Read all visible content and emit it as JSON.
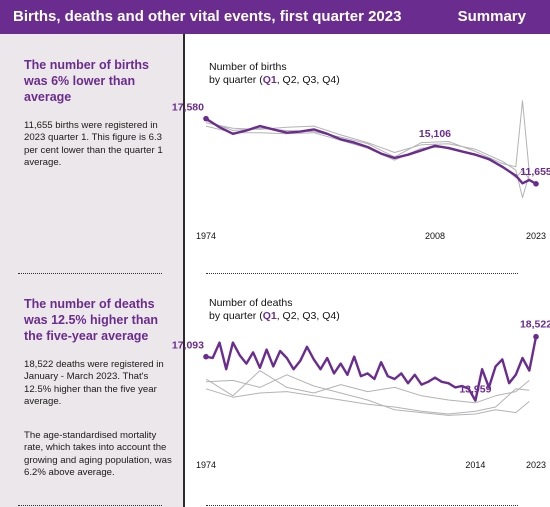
{
  "header": {
    "title": "Births, deaths and other vital events, first quarter 2023",
    "section": "Summary",
    "bg": "#6a2c8e"
  },
  "births_panel": {
    "headline": "The number of births was 6% lower than average",
    "body": "11,655 births were registered in 2023 quarter 1. This figure is 6.3 per cent lower than the quarter 1 average."
  },
  "deaths_panel": {
    "headline": "The number of deaths was 12.5% higher than the five-year average",
    "body": [
      "18,522 deaths were registered in January - March 2023. That's 12.5% higher than the five year average.",
      "The age-standardised mortality rate, which takes into account the growing and aging population, was 6.2% above average."
    ]
  },
  "colors": {
    "highlight": "#6a2c8e",
    "other": "#b3b3b3"
  },
  "chart_data": [
    {
      "type": "line",
      "title_line1": "Number of births",
      "title_line2_prefix": "by quarter (",
      "title_line2_bold": "Q1",
      "title_line2_rest": ", Q2, Q3, Q4)",
      "x_ticks": [
        "1974",
        "2008",
        "2023"
      ],
      "x_range": [
        1974,
        2023
      ],
      "y_range": [
        10000,
        20000
      ],
      "series": [
        {
          "name": "Q1",
          "highlight": true,
          "x": [
            1974,
            1976,
            1978,
            1980,
            1982,
            1984,
            1986,
            1988,
            1990,
            1992,
            1994,
            1996,
            1998,
            2000,
            2002,
            2004,
            2006,
            2008,
            2010,
            2012,
            2014,
            2016,
            2018,
            2020,
            2021,
            2022,
            2023
          ],
          "y": [
            17580,
            16800,
            16200,
            16500,
            16900,
            16600,
            16300,
            16400,
            16600,
            16200,
            15700,
            15400,
            15000,
            14400,
            14000,
            14300,
            14700,
            15106,
            14900,
            14600,
            14300,
            13900,
            13200,
            12400,
            11700,
            12000,
            11655
          ]
        },
        {
          "x": [
            1974,
            1978,
            1982,
            1986,
            1990,
            1994,
            1998,
            2002,
            2006,
            2010,
            2014,
            2018,
            2020,
            2021,
            2022
          ],
          "y": [
            17200,
            16700,
            16600,
            16800,
            16900,
            16100,
            15400,
            14500,
            15200,
            15300,
            14800,
            13700,
            12900,
            10400,
            12500
          ]
        },
        {
          "x": [
            1974,
            1978,
            1982,
            1986,
            1990,
            1994,
            1998,
            2002,
            2006,
            2010,
            2014,
            2018,
            2020,
            2021,
            2022
          ],
          "y": [
            17400,
            16500,
            16700,
            16500,
            16400,
            15900,
            15300,
            14100,
            15400,
            15500,
            14600,
            13500,
            13200,
            19200,
            12700
          ]
        },
        {
          "x": [
            1974,
            1978,
            1982,
            1986,
            1990,
            1994,
            1998,
            2002,
            2006,
            2010,
            2014,
            2018,
            2020,
            2021,
            2022
          ],
          "y": [
            16900,
            16300,
            16300,
            16200,
            16300,
            15600,
            14900,
            13800,
            14900,
            15000,
            14300,
            13300,
            12200,
            12900,
            12100
          ]
        }
      ],
      "labels": [
        {
          "text": "17,580",
          "x": 1974,
          "y": 17580,
          "anchor": "end",
          "dy": -8
        },
        {
          "text": "15,106",
          "x": 2008,
          "y": 15106,
          "anchor": "middle",
          "dy": -9
        },
        {
          "text": "11,655",
          "x": 2023,
          "y": 11655,
          "anchor": "middle",
          "dy": -9
        }
      ]
    },
    {
      "type": "line",
      "title_line1": "Number of deaths",
      "title_line2_prefix": "by quarter (",
      "title_line2_bold": "Q1",
      "title_line2_rest": ", Q2, Q3, Q4)",
      "x_ticks": [
        "1974",
        "2014",
        "2023"
      ],
      "x_range": [
        1974,
        2023
      ],
      "y_range": [
        11500,
        19000
      ],
      "series": [
        {
          "name": "Q1",
          "highlight": true,
          "x": [
            1974,
            1975,
            1976,
            1977,
            1978,
            1979,
            1980,
            1981,
            1982,
            1983,
            1984,
            1985,
            1986,
            1987,
            1988,
            1989,
            1990,
            1991,
            1992,
            1993,
            1994,
            1995,
            1996,
            1997,
            1998,
            1999,
            2000,
            2001,
            2002,
            2003,
            2004,
            2005,
            2006,
            2007,
            2008,
            2009,
            2010,
            2011,
            2012,
            2013,
            2014,
            2015,
            2016,
            2017,
            2018,
            2019,
            2020,
            2021,
            2022,
            2023
          ],
          "y": [
            17093,
            17000,
            18100,
            16200,
            18100,
            17200,
            16600,
            17400,
            16300,
            17600,
            16400,
            17500,
            17000,
            16200,
            16800,
            17800,
            16900,
            16200,
            17000,
            15900,
            16600,
            15800,
            17100,
            15700,
            15900,
            15500,
            16700,
            15700,
            15500,
            15900,
            15200,
            15800,
            15100,
            15300,
            15600,
            15300,
            15200,
            14900,
            15000,
            14800,
            13959,
            16200,
            14900,
            16400,
            16900,
            15200,
            15800,
            17000,
            16100,
            18522
          ]
        },
        {
          "x": [
            1974,
            1978,
            1982,
            1986,
            1990,
            1994,
            1998,
            2002,
            2006,
            2010,
            2014,
            2017,
            2020,
            2022
          ],
          "y": [
            15500,
            14300,
            16100,
            14900,
            14500,
            15100,
            14600,
            14900,
            14300,
            14000,
            13800,
            14300,
            14600,
            15400
          ]
        },
        {
          "x": [
            1974,
            1978,
            1982,
            1986,
            1990,
            1994,
            1998,
            2002,
            2006,
            2010,
            2014,
            2017,
            2020,
            2022
          ],
          "y": [
            14800,
            14200,
            14500,
            14600,
            14300,
            14000,
            13700,
            13500,
            13200,
            13000,
            13200,
            13500,
            14800,
            14700
          ]
        },
        {
          "x": [
            1974,
            1978,
            1982,
            1986,
            1990,
            1994,
            1998,
            2002,
            2006,
            2010,
            2014,
            2017,
            2020,
            2022
          ],
          "y": [
            15300,
            15400,
            14900,
            15800,
            15000,
            14500,
            14000,
            13300,
            13100,
            12900,
            13000,
            13300,
            13100,
            13900
          ]
        }
      ],
      "labels": [
        {
          "text": "17,093",
          "x": 1974,
          "y": 17093,
          "anchor": "end",
          "dy": -8
        },
        {
          "text": "13,959",
          "x": 2014,
          "y": 13959,
          "anchor": "middle",
          "dy": -8
        },
        {
          "text": "18,522",
          "x": 2023,
          "y": 18522,
          "anchor": "middle",
          "dy": -9
        }
      ]
    }
  ]
}
